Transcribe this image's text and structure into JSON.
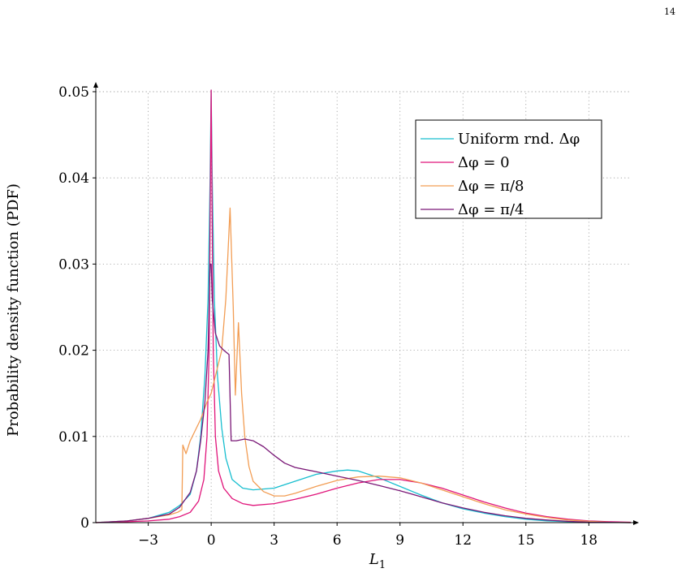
{
  "page": {
    "number": "14"
  },
  "colors": {
    "uniform": "#17becf",
    "dphi0": "#e0147a",
    "dphi_pi8": "#f29d54",
    "dphi_pi4": "#7a1877"
  },
  "chart_data": {
    "type": "line",
    "xlabel": "L",
    "xlabel_sub": "1",
    "ylabel": "Probability density function (PDF)",
    "xlim": [
      -5.5,
      20
    ],
    "ylim": [
      0,
      0.05
    ],
    "x_ticks": [
      -3,
      0,
      3,
      6,
      9,
      12,
      15,
      18
    ],
    "x_tick_labels": [
      "−3",
      "0",
      "3",
      "6",
      "9",
      "12",
      "15",
      "18"
    ],
    "y_ticks": [
      0,
      0.01,
      0.02,
      0.03,
      0.04,
      0.05
    ],
    "y_tick_labels": [
      "0",
      "0.01",
      "0.02",
      "0.03",
      "0.04",
      "0.05"
    ],
    "grid": true,
    "legend_position": "top-right",
    "series": [
      {
        "key": "uniform",
        "name": "Uniform rnd. Δφ",
        "color": "#17becf",
        "points": [
          [
            -5.5,
            0
          ],
          [
            -4,
            0.0002
          ],
          [
            -3,
            0.0005
          ],
          [
            -2,
            0.0012
          ],
          [
            -1.5,
            0.002
          ],
          [
            -1,
            0.0033
          ],
          [
            -0.7,
            0.006
          ],
          [
            -0.5,
            0.01
          ],
          [
            -0.3,
            0.017
          ],
          [
            -0.15,
            0.026
          ],
          [
            -0.05,
            0.04
          ],
          [
            0,
            0.052
          ],
          [
            0.05,
            0.04
          ],
          [
            0.15,
            0.026
          ],
          [
            0.3,
            0.017
          ],
          [
            0.5,
            0.011
          ],
          [
            0.7,
            0.0075
          ],
          [
            1,
            0.005
          ],
          [
            1.5,
            0.004
          ],
          [
            2,
            0.0038
          ],
          [
            3,
            0.004
          ],
          [
            4,
            0.0048
          ],
          [
            5,
            0.0056
          ],
          [
            6,
            0.006
          ],
          [
            6.5,
            0.0061
          ],
          [
            7,
            0.006
          ],
          [
            8,
            0.0052
          ],
          [
            9,
            0.0042
          ],
          [
            10,
            0.0032
          ],
          [
            11,
            0.0023
          ],
          [
            12,
            0.0016
          ],
          [
            13,
            0.0011
          ],
          [
            14,
            0.0007
          ],
          [
            15,
            0.0004
          ],
          [
            16,
            0.0002
          ],
          [
            17,
            0.0001
          ],
          [
            18,
            4e-05
          ],
          [
            20,
            0
          ]
        ]
      },
      {
        "key": "dphi0",
        "name": "Δφ = 0",
        "color": "#e0147a",
        "points": [
          [
            -5.5,
            0
          ],
          [
            -4,
            0.0001
          ],
          [
            -3,
            0.0002
          ],
          [
            -2,
            0.0004
          ],
          [
            -1.5,
            0.0007
          ],
          [
            -1,
            0.0012
          ],
          [
            -0.6,
            0.0025
          ],
          [
            -0.35,
            0.005
          ],
          [
            -0.2,
            0.01
          ],
          [
            -0.1,
            0.02
          ],
          [
            -0.05,
            0.035
          ],
          [
            0,
            0.052
          ],
          [
            0.05,
            0.035
          ],
          [
            0.1,
            0.02
          ],
          [
            0.2,
            0.01
          ],
          [
            0.35,
            0.006
          ],
          [
            0.6,
            0.004
          ],
          [
            1,
            0.0028
          ],
          [
            1.5,
            0.0022
          ],
          [
            2,
            0.002
          ],
          [
            3,
            0.0022
          ],
          [
            4,
            0.0027
          ],
          [
            5,
            0.0033
          ],
          [
            6,
            0.004
          ],
          [
            7,
            0.0046
          ],
          [
            8,
            0.005
          ],
          [
            9,
            0.005
          ],
          [
            10,
            0.0046
          ],
          [
            11,
            0.004
          ],
          [
            12,
            0.0032
          ],
          [
            13,
            0.0024
          ],
          [
            14,
            0.0017
          ],
          [
            15,
            0.0011
          ],
          [
            16,
            0.0007
          ],
          [
            17,
            0.0004
          ],
          [
            18,
            0.0002
          ],
          [
            19,
            0.0001
          ],
          [
            20,
            5e-05
          ]
        ]
      },
      {
        "key": "dphi_pi8",
        "name": "Δφ = π/8",
        "color": "#f29d54",
        "points": [
          [
            -5.5,
            0
          ],
          [
            -4,
            0.0002
          ],
          [
            -3,
            0.0005
          ],
          [
            -2,
            0.0009
          ],
          [
            -1.6,
            0.0012
          ],
          [
            -1.4,
            0.0015
          ],
          [
            -1.35,
            0.009
          ],
          [
            -1.2,
            0.008
          ],
          [
            -1,
            0.0095
          ],
          [
            -0.8,
            0.0105
          ],
          [
            -0.5,
            0.012
          ],
          [
            -0.2,
            0.014
          ],
          [
            0,
            0.015
          ],
          [
            0.2,
            0.017
          ],
          [
            0.5,
            0.02
          ],
          [
            0.7,
            0.026
          ],
          [
            0.9,
            0.0365
          ],
          [
            1.05,
            0.025
          ],
          [
            1.15,
            0.0148
          ],
          [
            1.3,
            0.0232
          ],
          [
            1.45,
            0.015
          ],
          [
            1.6,
            0.01
          ],
          [
            1.8,
            0.0065
          ],
          [
            2,
            0.0048
          ],
          [
            2.5,
            0.0036
          ],
          [
            3,
            0.0031
          ],
          [
            3.5,
            0.0031
          ],
          [
            4,
            0.0034
          ],
          [
            5,
            0.0042
          ],
          [
            6,
            0.0049
          ],
          [
            7,
            0.0053
          ],
          [
            8,
            0.0054
          ],
          [
            9,
            0.0052
          ],
          [
            10,
            0.0046
          ],
          [
            11,
            0.0038
          ],
          [
            12,
            0.003
          ],
          [
            13,
            0.0022
          ],
          [
            14,
            0.0015
          ],
          [
            15,
            0.001
          ],
          [
            16,
            0.0006
          ],
          [
            17,
            0.0003
          ],
          [
            18,
            0.00015
          ],
          [
            19,
            5e-05
          ],
          [
            20,
            0
          ]
        ]
      },
      {
        "key": "dphi_pi4",
        "name": "Δφ = π/4",
        "color": "#7a1877",
        "points": [
          [
            -5.5,
            0
          ],
          [
            -4,
            0.0002
          ],
          [
            -3,
            0.0005
          ],
          [
            -2,
            0.001
          ],
          [
            -1.5,
            0.0018
          ],
          [
            -1,
            0.0035
          ],
          [
            -0.7,
            0.006
          ],
          [
            -0.5,
            0.0095
          ],
          [
            -0.3,
            0.014
          ],
          [
            -0.15,
            0.02
          ],
          [
            -0.05,
            0.03
          ],
          [
            0,
            0.03
          ],
          [
            0.05,
            0.026
          ],
          [
            0.2,
            0.022
          ],
          [
            0.4,
            0.0205
          ],
          [
            0.6,
            0.02
          ],
          [
            0.85,
            0.0195
          ],
          [
            0.95,
            0.0095
          ],
          [
            1.2,
            0.0095
          ],
          [
            1.6,
            0.0097
          ],
          [
            2,
            0.0095
          ],
          [
            2.5,
            0.0088
          ],
          [
            3,
            0.0078
          ],
          [
            3.5,
            0.0069
          ],
          [
            4,
            0.0064
          ],
          [
            5,
            0.0059
          ],
          [
            6,
            0.0054
          ],
          [
            7,
            0.0049
          ],
          [
            8,
            0.0043
          ],
          [
            9,
            0.0037
          ],
          [
            10,
            0.003
          ],
          [
            11,
            0.0023
          ],
          [
            12,
            0.0017
          ],
          [
            13,
            0.0012
          ],
          [
            14,
            0.0008
          ],
          [
            15,
            0.0005
          ],
          [
            16,
            0.0003
          ],
          [
            17,
            0.00015
          ],
          [
            18,
            6e-05
          ],
          [
            20,
            0
          ]
        ]
      }
    ]
  }
}
